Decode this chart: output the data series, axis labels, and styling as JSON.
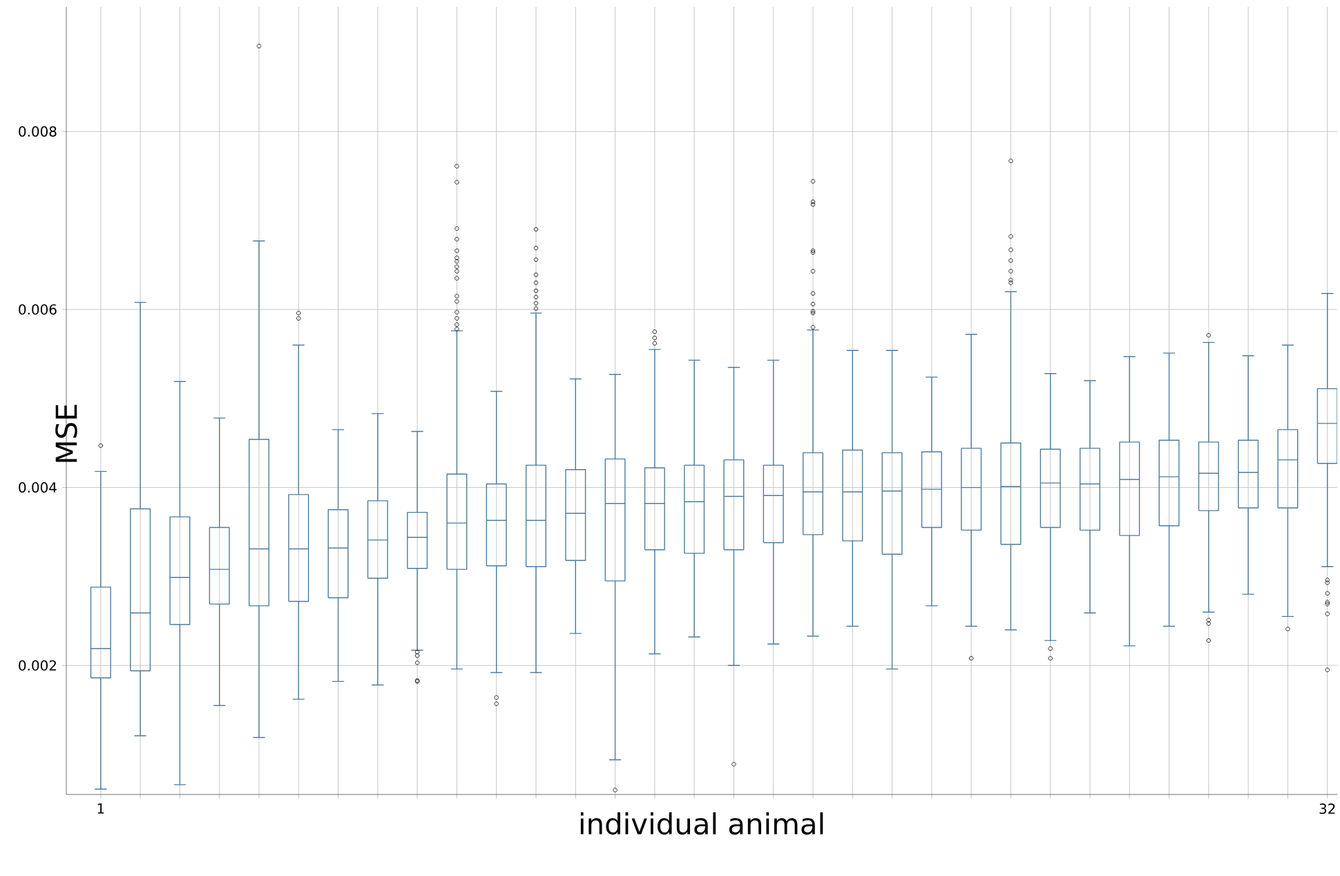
{
  "chart_data": {
    "type": "box",
    "xlabel": "individual animal",
    "ylabel": "MSE",
    "categories": [
      "1",
      null,
      null,
      null,
      null,
      null,
      null,
      null,
      null,
      null,
      null,
      null,
      null,
      null,
      null,
      null,
      null,
      null,
      null,
      null,
      null,
      null,
      null,
      null,
      null,
      null,
      null,
      null,
      null,
      null,
      null,
      "32"
    ],
    "ylim": [
      0.00055,
      0.0094
    ],
    "yticks": [
      0.002,
      0.004,
      0.006,
      0.008
    ],
    "grid": true,
    "series": [
      {
        "color": "#4e7c9c",
        "boxes": [
          {
            "low": 0.00061,
            "q1": 0.00186,
            "median": 0.00219,
            "q3": 0.00288,
            "high": 0.00418,
            "outliers": [
              0.00447
            ]
          },
          {
            "low": 0.00121,
            "q1": 0.00194,
            "median": 0.00259,
            "q3": 0.00376,
            "high": 0.00608
          },
          {
            "low": 0.00066,
            "q1": 0.00246,
            "median": 0.00299,
            "q3": 0.00367,
            "high": 0.00519
          },
          {
            "low": 0.00155,
            "q1": 0.00269,
            "median": 0.00308,
            "q3": 0.00355,
            "high": 0.00478
          },
          {
            "low": 0.00119,
            "q1": 0.00267,
            "median": 0.00331,
            "q3": 0.00454,
            "high": 0.00677,
            "outliers": [
              0.00896
            ]
          },
          {
            "low": 0.00162,
            "q1": 0.00272,
            "median": 0.00331,
            "q3": 0.00392,
            "high": 0.0056,
            "outliers": [
              0.0059,
              0.00596
            ]
          },
          {
            "low": 0.00182,
            "q1": 0.00276,
            "median": 0.00332,
            "q3": 0.00375,
            "high": 0.00465
          },
          {
            "low": 0.00178,
            "q1": 0.00298,
            "median": 0.00341,
            "q3": 0.00385,
            "high": 0.00483
          },
          {
            "low": 0.00217,
            "q1": 0.00309,
            "median": 0.00344,
            "q3": 0.00372,
            "high": 0.00463,
            "outliers": [
              0.00215,
              0.00211,
              0.00203,
              0.00183,
              0.00182
            ]
          },
          {
            "low": 0.00196,
            "q1": 0.00308,
            "median": 0.0036,
            "q3": 0.00415,
            "high": 0.00576,
            "outliers": [
              0.00578,
              0.00583,
              0.0059,
              0.00597,
              0.00609,
              0.00615,
              0.00635,
              0.00643,
              0.00648,
              0.00654,
              0.00658,
              0.00666,
              0.00679,
              0.00691,
              0.00743,
              0.00761
            ]
          },
          {
            "low": 0.00192,
            "q1": 0.00312,
            "median": 0.00363,
            "q3": 0.00404,
            "high": 0.00508,
            "outliers": [
              0.00164,
              0.00157
            ]
          },
          {
            "low": 0.00192,
            "q1": 0.00311,
            "median": 0.00363,
            "q3": 0.00425,
            "high": 0.00596,
            "outliers": [
              0.00601,
              0.00607,
              0.00614,
              0.00621,
              0.0063,
              0.00639,
              0.00656,
              0.00669,
              0.0069
            ]
          },
          {
            "low": 0.00236,
            "q1": 0.00318,
            "median": 0.00371,
            "q3": 0.0042,
            "high": 0.00522
          },
          {
            "low": 0.00094,
            "q1": 0.00295,
            "median": 0.00382,
            "q3": 0.00432,
            "high": 0.00527,
            "outliers": [
              0.0006
            ]
          },
          {
            "low": 0.00213,
            "q1": 0.0033,
            "median": 0.00382,
            "q3": 0.00422,
            "high": 0.00555,
            "outliers": [
              0.00562,
              0.00568,
              0.00575
            ]
          },
          {
            "low": 0.00232,
            "q1": 0.00326,
            "median": 0.00384,
            "q3": 0.00425,
            "high": 0.00543
          },
          {
            "low": 0.002,
            "q1": 0.0033,
            "median": 0.0039,
            "q3": 0.00431,
            "high": 0.00535,
            "outliers": [
              0.00089
            ]
          },
          {
            "low": 0.00224,
            "q1": 0.00338,
            "median": 0.00391,
            "q3": 0.00425,
            "high": 0.00543
          },
          {
            "low": 0.00233,
            "q1": 0.00347,
            "median": 0.00395,
            "q3": 0.00439,
            "high": 0.00577,
            "outliers": [
              0.0058,
              0.00596,
              0.00598,
              0.00606,
              0.00618,
              0.00643,
              0.00664,
              0.00666,
              0.00718,
              0.00721,
              0.00744
            ]
          },
          {
            "low": 0.00244,
            "q1": 0.0034,
            "median": 0.00395,
            "q3": 0.00442,
            "high": 0.00554
          },
          {
            "low": 0.00196,
            "q1": 0.00325,
            "median": 0.00396,
            "q3": 0.00439,
            "high": 0.00554
          },
          {
            "low": 0.00267,
            "q1": 0.00355,
            "median": 0.00398,
            "q3": 0.0044,
            "high": 0.00524
          },
          {
            "low": 0.00244,
            "q1": 0.00352,
            "median": 0.004,
            "q3": 0.00444,
            "high": 0.00572,
            "outliers": [
              0.00208
            ]
          },
          {
            "low": 0.0024,
            "q1": 0.00336,
            "median": 0.00401,
            "q3": 0.0045,
            "high": 0.0062,
            "outliers": [
              0.0063,
              0.00633,
              0.00643,
              0.00655,
              0.00667,
              0.00682,
              0.00767
            ]
          },
          {
            "low": 0.00228,
            "q1": 0.00355,
            "median": 0.00405,
            "q3": 0.00443,
            "high": 0.00528,
            "outliers": [
              0.00219,
              0.00208
            ]
          },
          {
            "low": 0.00259,
            "q1": 0.00352,
            "median": 0.00404,
            "q3": 0.00444,
            "high": 0.0052
          },
          {
            "low": 0.00222,
            "q1": 0.00346,
            "median": 0.00409,
            "q3": 0.00451,
            "high": 0.00547
          },
          {
            "low": 0.00244,
            "q1": 0.00357,
            "median": 0.00412,
            "q3": 0.00453,
            "high": 0.00551
          },
          {
            "low": 0.0026,
            "q1": 0.00374,
            "median": 0.00416,
            "q3": 0.00451,
            "high": 0.00563,
            "outliers": [
              0.00571,
              0.00251,
              0.00247,
              0.00228
            ]
          },
          {
            "low": 0.0028,
            "q1": 0.00377,
            "median": 0.00417,
            "q3": 0.00453,
            "high": 0.00548
          },
          {
            "low": 0.00255,
            "q1": 0.00377,
            "median": 0.00431,
            "q3": 0.00465,
            "high": 0.0056,
            "outliers": [
              0.00241
            ]
          },
          {
            "low": 0.00311,
            "q1": 0.00427,
            "median": 0.00472,
            "q3": 0.00511,
            "high": 0.00618,
            "outliers": [
              0.00296,
              0.00293,
              0.00281,
              0.00271,
              0.00269,
              0.00258,
              0.00195
            ]
          }
        ]
      }
    ]
  }
}
